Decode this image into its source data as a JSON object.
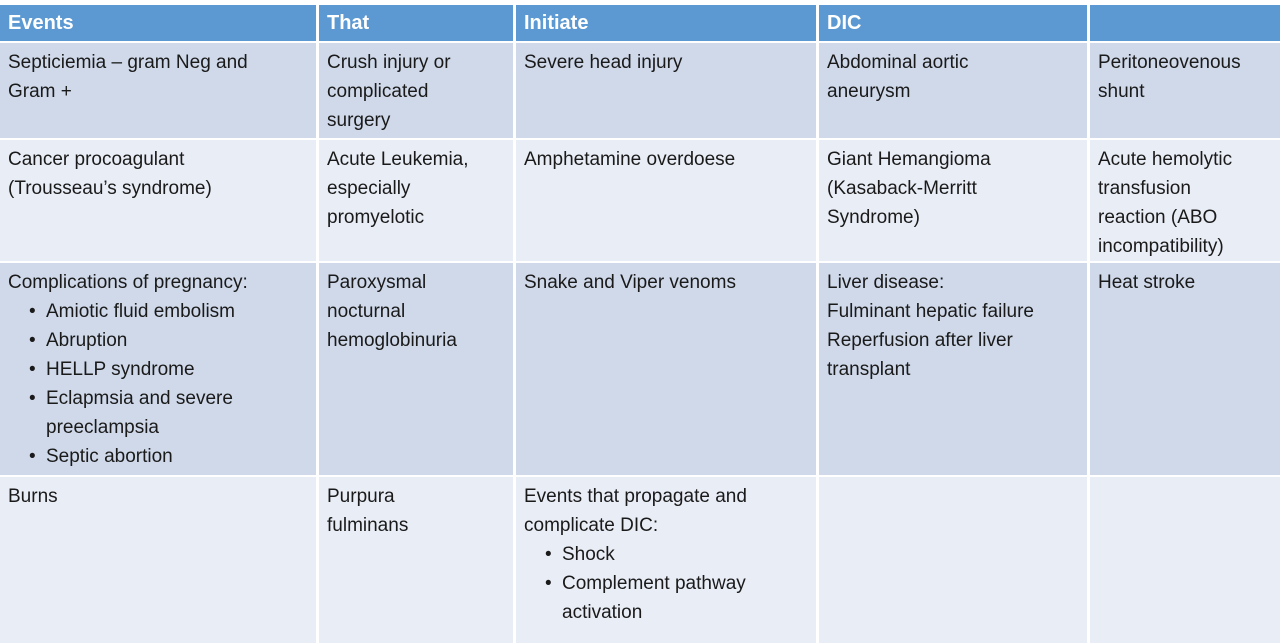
{
  "colors": {
    "header_bg": "#5c99d2",
    "header_text": "#ffffff",
    "row_band_dark": "#cfd9ea",
    "row_band_light": "#e9edf6",
    "body_text": "#1a1a1a",
    "grid_gap": "#ffffff"
  },
  "table": {
    "columns": [
      "Events",
      "That",
      "Initiate",
      "DIC",
      ""
    ],
    "rows": [
      {
        "cells": [
          {
            "text": "Septiciemia – gram Neg and\nGram +"
          },
          {
            "text": "Crush injury or\ncomplicated\nsurgery"
          },
          {
            "text": "Severe head injury"
          },
          {
            "text": "Abdominal aortic\naneurysm"
          },
          {
            "text": "Peritoneovenous\nshunt"
          }
        ]
      },
      {
        "cells": [
          {
            "text": "Cancer procoagulant\n(Trousseau’s syndrome)"
          },
          {
            "text": "Acute Leukemia,\nespecially\npromyelotic"
          },
          {
            "text": "Amphetamine overdoese"
          },
          {
            "text": "Giant Hemangioma\n(Kasaback-Merritt\nSyndrome)"
          },
          {
            "text": "Acute hemolytic\ntransfusion\nreaction (ABO\nincompatibility)"
          }
        ]
      },
      {
        "cells": [
          {
            "text": "Complications of pregnancy:",
            "bullets": [
              "Amiotic fluid embolism",
              "Abruption",
              "HELLP syndrome",
              "Eclapmsia and severe\npreeclampsia",
              "Septic abortion"
            ]
          },
          {
            "text": "Paroxysmal\nnocturnal\nhemoglobinuria"
          },
          {
            "text": "Snake and Viper venoms"
          },
          {
            "text": "Liver disease:\nFulminant hepatic failure\nReperfusion after liver\ntransplant"
          },
          {
            "text": "Heat stroke"
          }
        ]
      },
      {
        "cells": [
          {
            "text": "Burns"
          },
          {
            "text": "Purpura\nfulminans"
          },
          {
            "text": "Events that propagate and\ncomplicate DIC:",
            "bullets": [
              "Shock",
              "Complement pathway\nactivation"
            ]
          },
          {
            "text": ""
          },
          {
            "text": ""
          }
        ]
      }
    ]
  }
}
